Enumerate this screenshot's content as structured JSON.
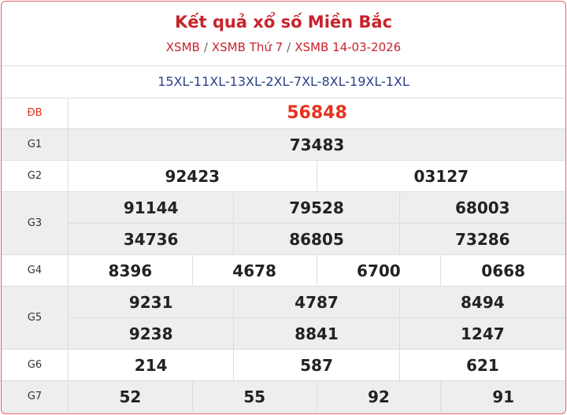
{
  "header": {
    "title": "Kết quả xổ số Miền Bắc",
    "subtitle": {
      "links": [
        "XSMB",
        "XSMB Thứ 7",
        "XSMB 14-03-2026"
      ],
      "separator": "/"
    },
    "code": "15XL-11XL-13XL-2XL-7XL-8XL-19XL-1XL"
  },
  "prizes": [
    {
      "label": "ĐB",
      "numbers": [
        "56848"
      ]
    },
    {
      "label": "G1",
      "numbers": [
        "73483"
      ]
    },
    {
      "label": "G2",
      "numbers": [
        "92423",
        "03127"
      ]
    },
    {
      "label": "G3",
      "numbers": [
        "91144",
        "79528",
        "68003",
        "34736",
        "86805",
        "73286"
      ]
    },
    {
      "label": "G4",
      "numbers": [
        "8396",
        "4678",
        "6700",
        "0668"
      ]
    },
    {
      "label": "G5",
      "numbers": [
        "9231",
        "4787",
        "8494",
        "9238",
        "8841",
        "1247"
      ]
    },
    {
      "label": "G6",
      "numbers": [
        "214",
        "587",
        "621"
      ]
    },
    {
      "label": "G7",
      "numbers": [
        "52",
        "55",
        "92",
        "91"
      ]
    }
  ]
}
